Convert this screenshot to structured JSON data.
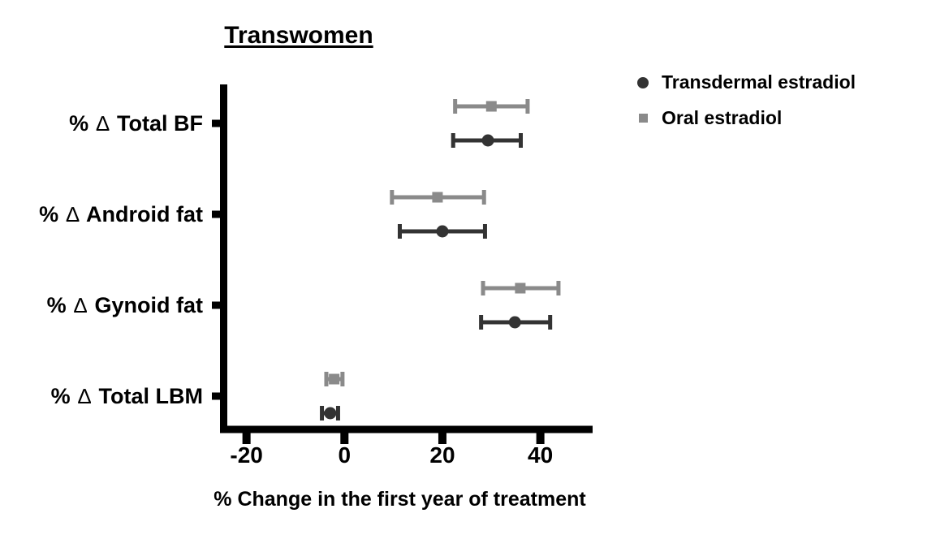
{
  "chart": {
    "title": "Transwomen",
    "xlabel": "% Change in the first year of treatment"
  },
  "legend": {
    "items": [
      {
        "label": "Transdermal estradiol",
        "marker": "circle",
        "color": "#333333"
      },
      {
        "label": "Oral estradiol",
        "marker": "square",
        "color": "#8a8a8a"
      }
    ]
  },
  "chart_data": {
    "type": "scatter",
    "subtype": "horizontal-point-estimates-with-error-bars",
    "title": "Transwomen",
    "xlabel": "% Change in the first year of treatment",
    "categories": [
      "% ∆ Total BF",
      "% ∆ Android fat",
      "% ∆ Gynoid fat",
      "% ∆ Total LBM"
    ],
    "x_ticks": [
      -20,
      0,
      20,
      40
    ],
    "xlim": [
      -25.5,
      50.5
    ],
    "grid": false,
    "legend_position": "top-right",
    "series": [
      {
        "name": "Oral estradiol",
        "marker": "square",
        "color": "#8a8a8a",
        "values": [
          30.0,
          19.0,
          35.9,
          -2.1
        ],
        "ci_low": [
          22.6,
          9.7,
          28.3,
          -3.7
        ],
        "ci_high": [
          37.4,
          28.5,
          43.7,
          -0.4
        ]
      },
      {
        "name": "Transdermal estradiol",
        "marker": "circle",
        "color": "#333333",
        "values": [
          29.3,
          20.0,
          34.8,
          -2.9
        ],
        "ci_low": [
          22.2,
          11.3,
          27.9,
          -4.6
        ],
        "ci_high": [
          36.0,
          28.7,
          42.0,
          -1.3
        ]
      }
    ]
  }
}
